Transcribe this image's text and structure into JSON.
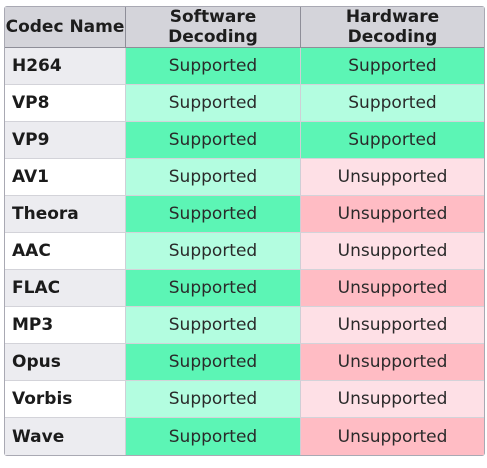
{
  "table": {
    "headers": [
      "Codec Name",
      "Software Decoding",
      "Hardware Decoding"
    ],
    "rows": [
      {
        "name": "H264",
        "software": "Supported",
        "hardware": "Supported"
      },
      {
        "name": "VP8",
        "software": "Supported",
        "hardware": "Supported"
      },
      {
        "name": "VP9",
        "software": "Supported",
        "hardware": "Supported"
      },
      {
        "name": "AV1",
        "software": "Supported",
        "hardware": "Unsupported"
      },
      {
        "name": "Theora",
        "software": "Supported",
        "hardware": "Unsupported"
      },
      {
        "name": "AAC",
        "software": "Supported",
        "hardware": "Unsupported"
      },
      {
        "name": "FLAC",
        "software": "Supported",
        "hardware": "Unsupported"
      },
      {
        "name": "MP3",
        "software": "Supported",
        "hardware": "Unsupported"
      },
      {
        "name": "Opus",
        "software": "Supported",
        "hardware": "Unsupported"
      },
      {
        "name": "Vorbis",
        "software": "Supported",
        "hardware": "Unsupported"
      },
      {
        "name": "Wave",
        "software": "Supported",
        "hardware": "Unsupported"
      }
    ]
  },
  "colors": {
    "header_bg": "#d4d4da",
    "supported_strong": "#5cf5b5",
    "supported_light": "#b3fde0",
    "unsupported_strong": "#ffbcc4",
    "unsupported_light": "#fee0e6"
  }
}
